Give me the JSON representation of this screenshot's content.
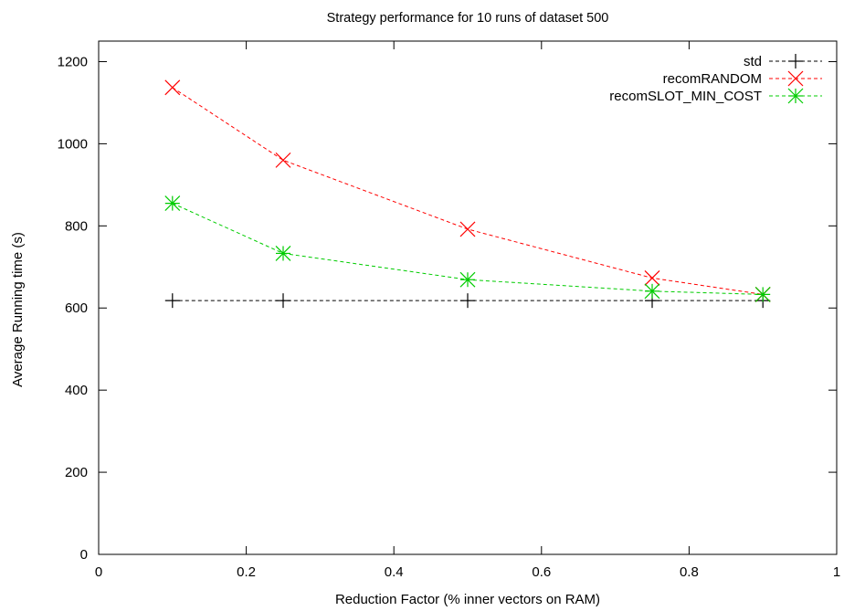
{
  "chart_data": {
    "type": "line",
    "title": "Strategy performance for 10 runs of dataset 500",
    "xlabel": "Reduction Factor (% inner vectors on RAM)",
    "ylabel": "Average Running time (s)",
    "xlim": [
      0,
      1
    ],
    "ylim": [
      0,
      1250
    ],
    "xticks": [
      0,
      0.2,
      0.4,
      0.6,
      0.8,
      1
    ],
    "xtick_labels": [
      "0",
      "0.2",
      "0.4",
      "0.6",
      "0.8",
      "1"
    ],
    "yticks": [
      0,
      200,
      400,
      600,
      800,
      1000,
      1200
    ],
    "ytick_labels": [
      "0",
      "200",
      "400",
      "600",
      "800",
      "1000",
      "1200"
    ],
    "grid": false,
    "legend_position": "top-right",
    "series": [
      {
        "name": "std",
        "color": "#000000",
        "marker": "plus",
        "x": [
          0.1,
          0.25,
          0.5,
          0.75,
          0.9
        ],
        "y": [
          618,
          618,
          618,
          618,
          618
        ]
      },
      {
        "name": "recomRANDOM",
        "color": "#ff0000",
        "marker": "cross",
        "x": [
          0.1,
          0.25,
          0.5,
          0.75,
          0.9
        ],
        "y": [
          1137,
          960,
          792,
          673,
          633
        ]
      },
      {
        "name": "recomSLOT_MIN_COST",
        "color": "#00cc00",
        "marker": "star",
        "x": [
          0.1,
          0.25,
          0.5,
          0.75,
          0.9
        ],
        "y": [
          855,
          733,
          669,
          641,
          633
        ]
      }
    ]
  }
}
